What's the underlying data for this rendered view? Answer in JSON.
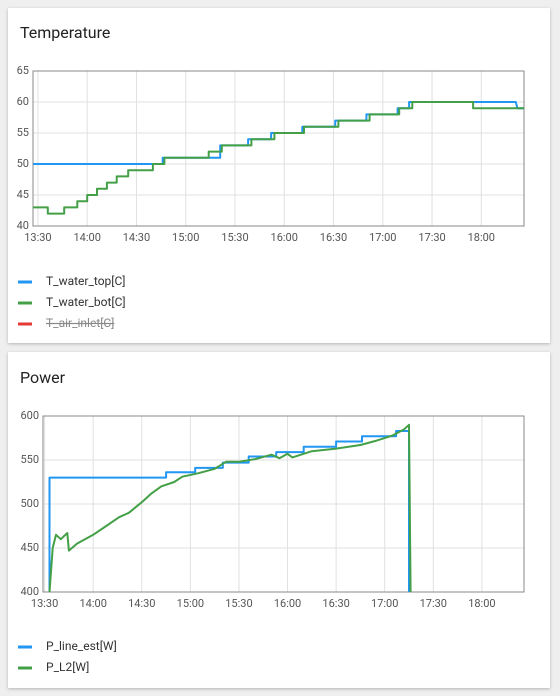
{
  "chart_data": [
    {
      "type": "line",
      "title": "Temperature",
      "xlim": [
        "13:27",
        "18:26"
      ],
      "xticks": [
        "13:30",
        "14:00",
        "14:30",
        "15:00",
        "15:30",
        "16:00",
        "16:30",
        "17:00",
        "17:30",
        "18:00"
      ],
      "ylim": [
        40,
        65
      ],
      "yticks": [
        40,
        45,
        50,
        55,
        60,
        65
      ],
      "grid": true,
      "series": [
        {
          "name": "T_water_top[C]",
          "color": "#2196f3",
          "x": [
            "13:27",
            "14:46",
            "14:46",
            "15:21",
            "15:21",
            "15:38",
            "15:38",
            "15:52",
            "15:52",
            "16:11",
            "16:11",
            "16:31",
            "16:31",
            "16:50",
            "16:50",
            "17:09",
            "17:09",
            "17:16",
            "17:16",
            "18:21",
            "18:22",
            "18:26"
          ],
          "values": [
            50,
            50,
            51,
            51,
            53,
            53,
            54,
            54,
            55,
            55,
            56,
            56,
            57,
            57,
            58,
            58,
            59,
            59,
            60,
            60,
            59,
            59
          ]
        },
        {
          "name": "T_water_bot[C]",
          "color": "#43a047",
          "x": [
            "13:27",
            "13:36",
            "13:36",
            "13:46",
            "13:46",
            "13:54",
            "13:54",
            "14:00",
            "14:00",
            "14:06",
            "14:06",
            "14:12",
            "14:12",
            "14:18",
            "14:18",
            "14:25",
            "14:25",
            "14:40",
            "14:40",
            "14:47",
            "14:47",
            "15:14",
            "15:14",
            "15:22",
            "15:22",
            "15:40",
            "15:40",
            "15:54",
            "15:54",
            "16:12",
            "16:12",
            "16:33",
            "16:33",
            "16:52",
            "16:52",
            "17:10",
            "17:10",
            "17:18",
            "17:18",
            "17:55",
            "17:55",
            "18:26"
          ],
          "values": [
            43,
            43,
            42,
            42,
            43,
            43,
            44,
            44,
            45,
            45,
            46,
            46,
            47,
            47,
            48,
            48,
            49,
            49,
            50,
            50,
            51,
            51,
            52,
            52,
            53,
            53,
            54,
            54,
            55,
            55,
            56,
            56,
            57,
            57,
            58,
            58,
            59,
            59,
            60,
            60,
            59,
            59
          ]
        },
        {
          "name": "T_air_inlet[C]",
          "color": "#e53935",
          "hidden": true
        }
      ]
    },
    {
      "type": "line",
      "title": "Power",
      "xlim": [
        "13:29",
        "18:26"
      ],
      "xticks": [
        "13:30",
        "14:00",
        "14:30",
        "15:00",
        "15:30",
        "16:00",
        "16:30",
        "17:00",
        "17:30",
        "18:00"
      ],
      "ylim": [
        400,
        600
      ],
      "yticks": [
        400,
        450,
        500,
        550,
        600
      ],
      "grid": true,
      "series": [
        {
          "name": "P_line_est[W]",
          "color": "#2196f3",
          "x": [
            "13:33",
            "13:33",
            "14:45",
            "14:45",
            "15:03",
            "15:03",
            "15:20",
            "15:20",
            "15:36",
            "15:36",
            "15:53",
            "15:53",
            "16:10",
            "16:10",
            "16:30",
            "16:30",
            "16:46",
            "16:46",
            "17:07",
            "17:07",
            "17:15",
            "17:15"
          ],
          "values": [
            400,
            530,
            530,
            536,
            536,
            541,
            541,
            547,
            547,
            554,
            554,
            559,
            559,
            565,
            565,
            571,
            571,
            577,
            577,
            583,
            583,
            400
          ]
        },
        {
          "name": "P_L2[W]",
          "color": "#43a047",
          "x": [
            "13:33",
            "13:35",
            "13:37",
            "13:40",
            "13:44",
            "13:45",
            "13:50",
            "14:00",
            "14:08",
            "14:16",
            "14:22",
            "14:30",
            "14:36",
            "14:42",
            "14:50",
            "14:55",
            "15:05",
            "15:15",
            "15:22",
            "15:30",
            "15:40",
            "15:50",
            "15:55",
            "16:00",
            "16:03",
            "16:15",
            "16:30",
            "16:45",
            "16:55",
            "17:05",
            "17:12",
            "17:15",
            "17:16"
          ],
          "values": [
            400,
            450,
            465,
            460,
            467,
            447,
            455,
            465,
            475,
            485,
            490,
            502,
            512,
            520,
            525,
            531,
            535,
            540,
            548,
            548,
            551,
            556,
            552,
            557,
            553,
            560,
            563,
            567,
            572,
            578,
            585,
            590,
            400
          ]
        }
      ]
    }
  ]
}
